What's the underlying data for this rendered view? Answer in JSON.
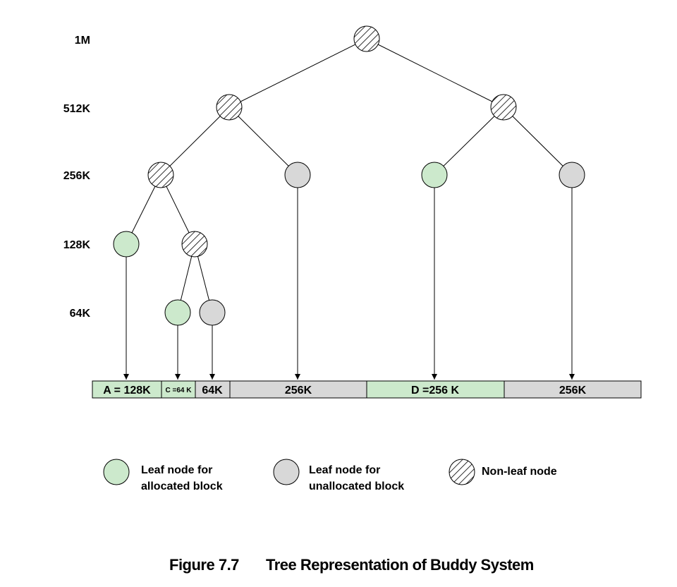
{
  "levels": [
    "1M",
    "512K",
    "256K",
    "128K",
    "64K"
  ],
  "colors": {
    "allocated": "#cce9cc",
    "unallocated": "#d8d8d8",
    "nonleaf_bg": "#ffffff",
    "stroke": "#000000"
  },
  "memory_blocks": [
    {
      "label": "A = 128K",
      "status": "allocated"
    },
    {
      "label": "C =64 K",
      "status": "allocated"
    },
    {
      "label": "64K",
      "status": "unallocated"
    },
    {
      "label": "256K",
      "status": "unallocated"
    },
    {
      "label": "D =256 K",
      "status": "allocated"
    },
    {
      "label": "256K",
      "status": "unallocated"
    }
  ],
  "legend": {
    "allocated": [
      "Leaf node for",
      "allocated block"
    ],
    "unallocated": [
      "Leaf node for",
      "unallocated block"
    ],
    "nonleaf": [
      "Non-leaf node"
    ]
  },
  "caption": {
    "figure": "Figure 7.7",
    "title": "Tree Representation of Buddy System"
  }
}
